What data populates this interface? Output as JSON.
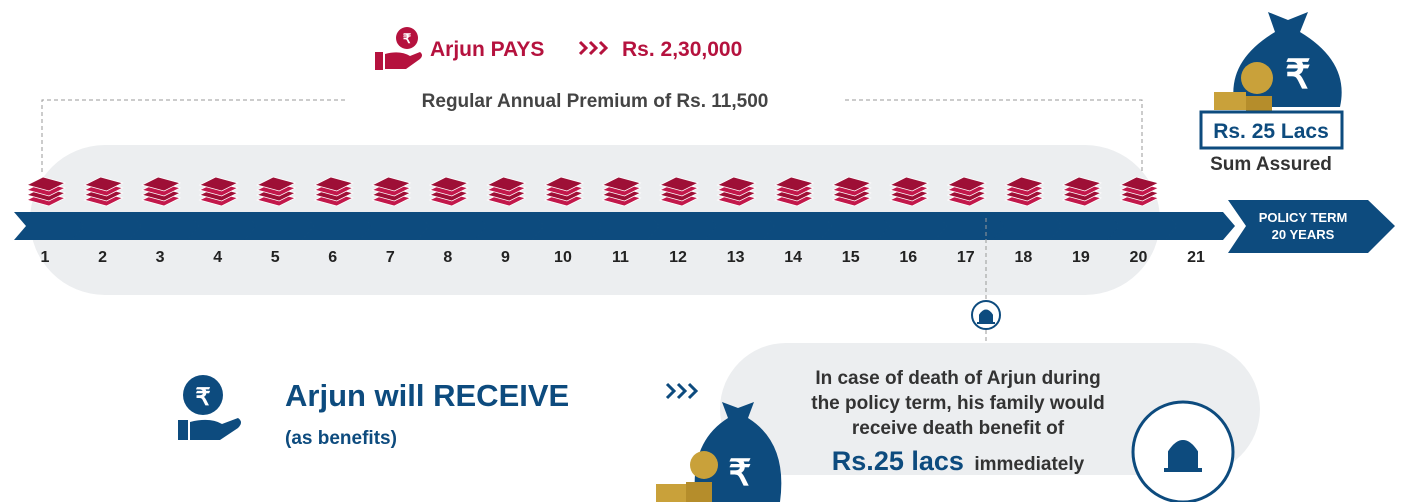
{
  "pays": {
    "label": "Arjun PAYS",
    "amount": "Rs. 2,30,000"
  },
  "premium_note": "Regular Annual Premium of Rs. 11,500",
  "currency_symbol": "₹",
  "sum_assured": {
    "amount": "Rs. 25 Lacs",
    "label": "Sum Assured"
  },
  "timeline": {
    "years": [
      "1",
      "2",
      "3",
      "4",
      "5",
      "6",
      "7",
      "8",
      "9",
      "10",
      "11",
      "12",
      "13",
      "14",
      "15",
      "16",
      "17",
      "18",
      "19",
      "20",
      "21"
    ],
    "term_line1": "POLICY TERM",
    "term_line2": "20 YEARS"
  },
  "receive": {
    "title": "Arjun will RECEIVE",
    "subtitle": "(as benefits)"
  },
  "death_benefit": {
    "lines": [
      "In case of death of Arjun during",
      "the policy term, his family would",
      "receive death benefit of"
    ],
    "amount": "Rs.25 lacs",
    "suffix": "immediately"
  }
}
